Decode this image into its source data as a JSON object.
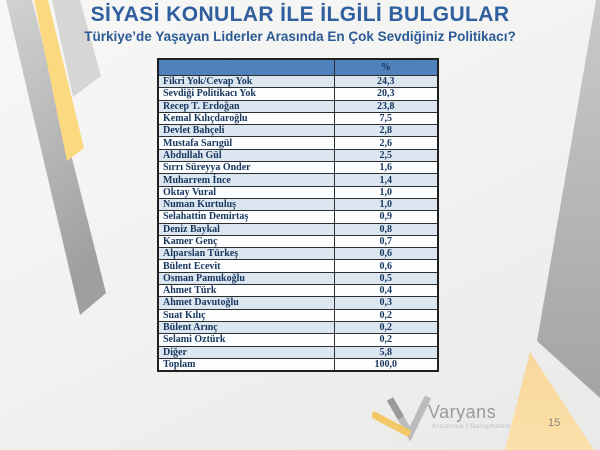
{
  "slide": {
    "title": "SİYASİ KONULAR İLE İLGİLİ BULGULAR",
    "subtitle": "Türkiye’de Yaşayan Liderler Arasında En Çok Sevdiğiniz Politikacı?",
    "page_number": "15"
  },
  "table": {
    "value_header": "%",
    "rows": [
      {
        "label": "Fikri Yok/Cevap Yok",
        "value": "24,3"
      },
      {
        "label": "Sevdiği Politikacı Yok",
        "value": "20,3"
      },
      {
        "label": "Recep T. Erdoğan",
        "value": "23,8"
      },
      {
        "label": "Kemal Kılıçdaroğlu",
        "value": "7,5"
      },
      {
        "label": "Devlet Bahçeli",
        "value": "2,8"
      },
      {
        "label": "Mustafa Sarıgül",
        "value": "2,6"
      },
      {
        "label": "Abdullah Gül",
        "value": "2,5"
      },
      {
        "label": "Sırrı Süreyya Önder",
        "value": "1,6"
      },
      {
        "label": "Muharrem İnce",
        "value": "1,4"
      },
      {
        "label": "Oktay Vural",
        "value": "1,0"
      },
      {
        "label": "Numan Kurtuluş",
        "value": "1,0"
      },
      {
        "label": "Selahattin Demirtaş",
        "value": "0,9"
      },
      {
        "label": "Deniz Baykal",
        "value": "0,8"
      },
      {
        "label": "Kamer Genç",
        "value": "0,7"
      },
      {
        "label": "Alparslan Türkeş",
        "value": "0,6"
      },
      {
        "label": "Bülent Ecevit",
        "value": "0,6"
      },
      {
        "label": "Osman Pamukoğlu",
        "value": "0,5"
      },
      {
        "label": "Ahmet Türk",
        "value": "0,4"
      },
      {
        "label": "Ahmet Davutoğlu",
        "value": "0,3"
      },
      {
        "label": "Suat Kılıç",
        "value": "0,2"
      },
      {
        "label": "Bülent Arınç",
        "value": "0,2"
      },
      {
        "label": "Selami Öztürk",
        "value": "0,2"
      },
      {
        "label": "Diğer",
        "value": "5,8"
      },
      {
        "label": "Toplam",
        "value": "100,0"
      }
    ]
  },
  "logo": {
    "brand": "Varyans",
    "tagline": "Araştırma | Danışmanlık"
  },
  "colors": {
    "title_blue": "#2f5f9e",
    "header_blue": "#4f81bd",
    "band_blue": "#dce6f1",
    "text_navy": "#17365d",
    "gold_ribbon": "#fbd981",
    "orange_triangle": "#f9d99e",
    "gray_ribbon": "#b5b5b5"
  },
  "chart_data": {
    "type": "table",
    "title": "SİYASİ KONULAR İLE İLGİLİ BULGULAR — Türkiye’de Yaşayan Liderler Arasında En Çok Sevdiğiniz Politikacı?",
    "value_header": "%",
    "categories": [
      "Fikri Yok/Cevap Yok",
      "Sevdiği Politikacı Yok",
      "Recep T. Erdoğan",
      "Kemal Kılıçdaroğlu",
      "Devlet Bahçeli",
      "Mustafa Sarıgül",
      "Abdullah Gül",
      "Sırrı Süreyya Önder",
      "Muharrem İnce",
      "Oktay Vural",
      "Numan Kurtuluş",
      "Selahattin Demirtaş",
      "Deniz Baykal",
      "Kamer Genç",
      "Alparslan Türkeş",
      "Bülent Ecevit",
      "Osman Pamukoğlu",
      "Ahmet Türk",
      "Ahmet Davutoğlu",
      "Suat Kılıç",
      "Bülent Arınç",
      "Selami Öztürk",
      "Diğer",
      "Toplam"
    ],
    "values": [
      24.3,
      20.3,
      23.8,
      7.5,
      2.8,
      2.6,
      2.5,
      1.6,
      1.4,
      1.0,
      1.0,
      0.9,
      0.8,
      0.7,
      0.6,
      0.6,
      0.5,
      0.4,
      0.3,
      0.2,
      0.2,
      0.2,
      5.8,
      100.0
    ]
  }
}
